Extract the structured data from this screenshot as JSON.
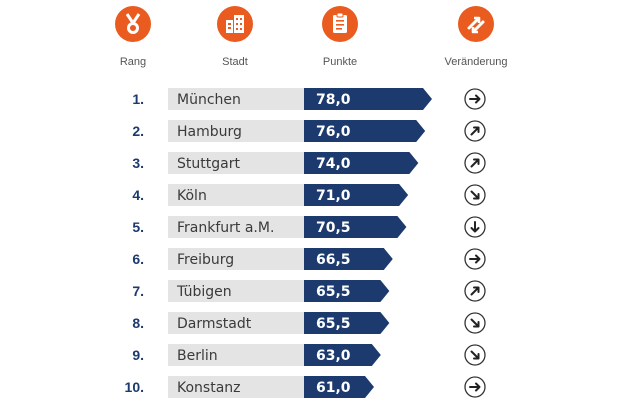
{
  "columns": {
    "rang": "Rang",
    "stadt": "Stadt",
    "punkte": "Punkte",
    "veraenderung": "Veränderung"
  },
  "icons": {
    "rang": "medal-icon",
    "stadt": "city-buildings-icon",
    "punkte": "clipboard-icon",
    "veraenderung": "trend-arrows-icon"
  },
  "colors": {
    "accent_orange": "#e95b1e",
    "bar_blue": "#1c3a6e",
    "city_bg": "#e4e4e4",
    "rank_text": "#1c3a6e"
  },
  "chart_data": {
    "type": "bar",
    "title": "",
    "xlabel": "",
    "ylabel": "",
    "rows": [
      {
        "rank": "1.",
        "city": "München",
        "value": 78.0,
        "value_label": "78,0",
        "change": "right"
      },
      {
        "rank": "2.",
        "city": "Hamburg",
        "value": 76.0,
        "value_label": "76,0",
        "change": "up-right"
      },
      {
        "rank": "3.",
        "city": "Stuttgart",
        "value": 74.0,
        "value_label": "74,0",
        "change": "up-right"
      },
      {
        "rank": "4.",
        "city": "Köln",
        "value": 71.0,
        "value_label": "71,0",
        "change": "down-right"
      },
      {
        "rank": "5.",
        "city": "Frankfurt a.M.",
        "value": 70.5,
        "value_label": "70,5",
        "change": "down"
      },
      {
        "rank": "6.",
        "city": "Freiburg",
        "value": 66.5,
        "value_label": "66,5",
        "change": "right"
      },
      {
        "rank": "7.",
        "city": "Tübigen",
        "value": 65.5,
        "value_label": "65,5",
        "change": "up-right"
      },
      {
        "rank": "8.",
        "city": "Darmstadt",
        "value": 65.5,
        "value_label": "65,5",
        "change": "down-right"
      },
      {
        "rank": "9.",
        "city": "Berlin",
        "value": 63.0,
        "value_label": "63,0",
        "change": "down-right"
      },
      {
        "rank": "10.",
        "city": "Konstanz",
        "value": 61.0,
        "value_label": "61,0",
        "change": "right"
      }
    ]
  }
}
